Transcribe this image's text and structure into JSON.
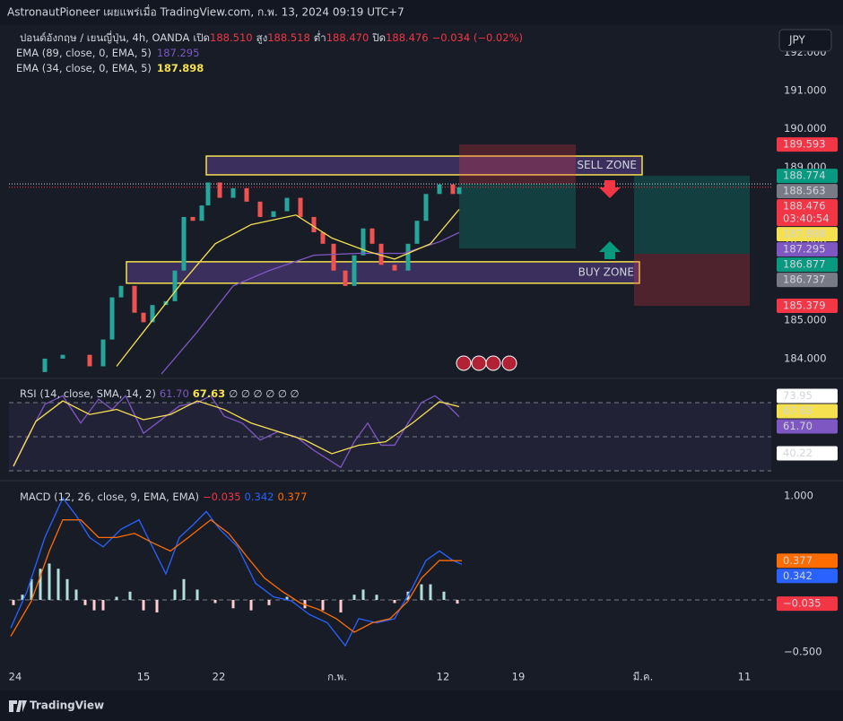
{
  "header": {
    "text": "AstronautPioneer เผยแพร่เมื่อ TradingView.com, ก.พ. 13, 2024 09:19 UTC+7"
  },
  "currency_button": "JPY",
  "footer": {
    "logo_text": "TradingView"
  },
  "chart_data": [
    {
      "type": "candlestick",
      "title": "ปอนด์อังกฤษ / เยนญี่ปุ่น, 4h, OANDA",
      "ohlc": [
        {
          "label": "เปิด",
          "value": "188.510"
        },
        {
          "label": "สูง",
          "value": "188.518"
        },
        {
          "label": "ต่ำ",
          "value": "188.470"
        },
        {
          "label": "ปิด",
          "value": "188.476"
        }
      ],
      "change": "−0.034 (−0.02%)",
      "up_color": "#26a69a",
      "down_color": "#ef5350",
      "x": [
        20,
        50,
        70,
        100,
        115,
        125,
        135,
        150,
        160,
        170,
        185,
        195,
        205,
        215,
        225,
        232,
        245,
        260,
        275,
        290,
        305,
        320,
        335,
        350,
        360,
        372,
        385,
        395,
        405,
        415,
        425,
        440,
        455,
        465,
        475,
        490,
        505,
        512
      ],
      "values": [
        183.65,
        184.0,
        184.1,
        183.8,
        184.5,
        185.6,
        185.9,
        185.2,
        184.95,
        185.4,
        185.5,
        186.3,
        187.7,
        187.6,
        188.0,
        188.6,
        188.2,
        188.45,
        188.1,
        187.7,
        187.85,
        188.2,
        187.7,
        187.3,
        187.0,
        186.3,
        185.9,
        186.7,
        187.4,
        187.0,
        186.45,
        186.3,
        187.0,
        187.6,
        188.3,
        188.55,
        188.3,
        188.476
      ],
      "indicators": [
        {
          "name": "EMA (89, close, 0, EMA, 5)",
          "value_label": "187.295",
          "color": "#7e57c2",
          "x": [
            180,
            220,
            260,
            300,
            350,
            400,
            450,
            490,
            512
          ],
          "values": [
            183.6,
            184.7,
            185.9,
            186.3,
            186.7,
            186.75,
            186.75,
            187.05,
            187.295
          ]
        },
        {
          "name": "EMA (34, close, 0, EMA, 5)",
          "value_label": "187.898",
          "color": "#f5e050",
          "x": [
            130,
            160,
            200,
            240,
            280,
            330,
            370,
            410,
            440,
            480,
            512
          ],
          "values": [
            183.8,
            184.7,
            185.9,
            187.0,
            187.5,
            187.75,
            187.15,
            186.8,
            186.6,
            187.0,
            187.898
          ]
        }
      ],
      "zones": [
        {
          "label": "SELL ZONE",
          "label_color": "#f23645",
          "top": 189.29,
          "bottom": 188.8,
          "x": [
            230,
            716
          ]
        },
        {
          "label": "BUY ZONE",
          "label_color": "#2aa6c8",
          "top": 186.53,
          "bottom": 185.97,
          "x": [
            141,
            713
          ]
        }
      ],
      "zone_stroke": "#f5e050",
      "zone_fill": "rgba(126,87,194,0.35)",
      "positions": [
        {
          "x": [
            512,
            642
          ],
          "entry": 188.563,
          "target": 186.877,
          "stop": 189.593
        },
        {
          "x": [
            707,
            836
          ],
          "entry": 186.737,
          "target": 188.774,
          "stop": 185.379
        }
      ],
      "profit_color": "rgba(8,153,129,0.28)",
      "loss_color": "rgba(242,54,69,0.25)",
      "ylim": [
        183.53,
        192.71
      ],
      "yticks": [
        {
          "value": 184,
          "label": "184.000"
        },
        {
          "value": 185,
          "label": "185.000"
        },
        {
          "value": 186,
          "label": "186.000"
        },
        {
          "value": 187,
          "label": "187.000"
        },
        {
          "value": 188,
          "label": "188.000"
        },
        {
          "value": 189,
          "label": "189.000"
        },
        {
          "value": 190,
          "label": "190.000"
        },
        {
          "value": 191,
          "label": "191.000"
        },
        {
          "value": 192,
          "label": "192.000"
        }
      ],
      "grid": false,
      "price_labels": [
        {
          "value": 189.593,
          "color": "#f23645",
          "text_color": "#ffffff"
        },
        {
          "value": 188.774,
          "color": "#089981",
          "text_color": "#ffffff"
        },
        {
          "value": 188.563,
          "color": "#787b86",
          "text_color": "#ffffff",
          "line": true
        },
        {
          "value": 188.476,
          "color": "#f23645",
          "text_color": "#ffffff",
          "line": true,
          "countdown": "03:40:54"
        },
        {
          "value": 187.898,
          "color": "#f5e050",
          "text_color": "#131722"
        },
        {
          "value": 187.295,
          "color": "#7e57c2",
          "text_color": "#ffffff"
        },
        {
          "value": 186.877,
          "color": "#089981",
          "text_color": "#ffffff"
        },
        {
          "value": 186.737,
          "color": "#787b86",
          "text_color": "#ffffff"
        },
        {
          "value": 185.379,
          "color": "#f23645",
          "text_color": "#ffffff"
        }
      ]
    },
    {
      "type": "line",
      "title": "RSI (14, close, SMA, 14, 2)",
      "legend_values": [
        {
          "label": "61.70",
          "color": "#7e57c2"
        },
        {
          "label": "67.63",
          "color": "#f5e050"
        }
      ],
      "legend_extra": "∅ ∅ ∅ ∅ ∅ ∅",
      "series": [
        {
          "color": "#7e57c2",
          "x": [
            15,
            30,
            50,
            70,
            90,
            110,
            125,
            140,
            160,
            180,
            200,
            220,
            235,
            250,
            270,
            290,
            310,
            330,
            350,
            365,
            380,
            395,
            410,
            425,
            440,
            455,
            470,
            485,
            500,
            512
          ],
          "values": [
            33,
            49,
            69,
            74,
            58,
            72,
            66,
            74,
            52,
            60,
            68,
            70,
            74,
            62,
            58,
            48,
            53,
            50,
            42,
            37,
            32,
            47,
            58,
            45,
            45,
            58,
            70,
            74,
            68,
            61.7
          ]
        },
        {
          "color": "#f5e050",
          "x": [
            15,
            40,
            70,
            100,
            130,
            160,
            190,
            220,
            250,
            280,
            310,
            340,
            370,
            400,
            430,
            460,
            490,
            512
          ],
          "values": [
            32.6,
            59,
            71,
            63,
            66,
            60,
            63,
            71,
            66,
            58,
            53,
            48,
            40,
            45,
            47,
            58,
            70.5,
            67.63
          ]
        }
      ],
      "bands": [
        70,
        50,
        30
      ],
      "band_fill": "rgba(126,87,194,0.1)",
      "ylim": [
        26.3,
        82.6
      ],
      "price_labels": [
        {
          "value": 73.95,
          "color": "#ffffff",
          "text_color": "#131722"
        },
        {
          "value": 67.63,
          "color": "#f5e050",
          "text_color": "#131722"
        },
        {
          "value": {
            "value": 61.7,
            "label": "61.70"
          },
          "color": "#7e57c2",
          "text_color": "#ffffff"
        },
        {
          "value": 40.22,
          "color": "#ffffff",
          "text_color": "#131722"
        }
      ]
    },
    {
      "type": "line",
      "title": "MACD (12, 26, close, 9, EMA, EMA)",
      "legend_values": [
        {
          "label": "−0.035",
          "color": "#f23645"
        },
        {
          "label": "0.342",
          "color": "#2962ff"
        },
        {
          "label": "0.377",
          "color": "#ff6d00"
        }
      ],
      "series": [
        {
          "type": "bar",
          "color_up": "#b2dfdb",
          "color_down": "#ffcdd2",
          "x": [
            15,
            25,
            35,
            45,
            55,
            65,
            75,
            85,
            95,
            105,
            115,
            130,
            145,
            160,
            175,
            195,
            205,
            220,
            240,
            260,
            280,
            300,
            320,
            340,
            360,
            380,
            395,
            405,
            420,
            440,
            455,
            470,
            480,
            495,
            510
          ],
          "values": [
            -0.05,
            0.05,
            0.2,
            0.3,
            0.35,
            0.3,
            0.2,
            0.1,
            -0.05,
            -0.1,
            -0.1,
            0.03,
            0.08,
            -0.1,
            -0.12,
            0.1,
            0.2,
            0.1,
            -0.03,
            -0.08,
            -0.1,
            -0.05,
            0.03,
            -0.08,
            -0.1,
            -0.12,
            0.05,
            0.1,
            0.05,
            -0.03,
            0.08,
            0.15,
            0.15,
            0.08,
            -0.035
          ]
        },
        {
          "color": "#2962ff",
          "x": [
            12,
            30,
            50,
            70,
            85,
            100,
            115,
            135,
            155,
            170,
            185,
            200,
            215,
            230,
            245,
            265,
            285,
            305,
            325,
            345,
            365,
            385,
            400,
            420,
            440,
            460,
            475,
            490,
            505,
            515
          ],
          "values": [
            -0.27,
            0.08,
            0.6,
            0.98,
            0.81,
            0.6,
            0.51,
            0.68,
            0.77,
            0.51,
            0.25,
            0.6,
            0.72,
            0.85,
            0.68,
            0.51,
            0.16,
            0.03,
            -0.01,
            -0.14,
            -0.22,
            -0.44,
            -0.18,
            -0.22,
            -0.18,
            0.12,
            0.38,
            0.47,
            0.38,
            0.342
          ]
        },
        {
          "color": "#ff6d00",
          "x": [
            12,
            35,
            55,
            70,
            90,
            110,
            130,
            150,
            170,
            190,
            210,
            235,
            255,
            275,
            295,
            315,
            335,
            355,
            375,
            395,
            415,
            435,
            455,
            470,
            490,
            515
          ],
          "values": [
            -0.35,
            -0.01,
            0.47,
            0.77,
            0.77,
            0.6,
            0.6,
            0.64,
            0.55,
            0.47,
            0.6,
            0.77,
            0.64,
            0.42,
            0.21,
            0.08,
            -0.03,
            -0.09,
            -0.18,
            -0.31,
            -0.22,
            -0.18,
            -0.01,
            0.21,
            0.38,
            0.377
          ]
        }
      ],
      "hlines": [
        0
      ],
      "ylim": [
        -0.612,
        1.112
      ],
      "yticks": [
        {
          "value": 1,
          "label": "1.000"
        },
        {
          "value": -0.5,
          "label": "−0.500"
        }
      ],
      "price_labels": [
        {
          "value": 0.377,
          "color": "#ff6d00",
          "text_color": "#ffffff"
        },
        {
          "value": 0.342,
          "color": "#2962ff",
          "text_color": "#ffffff"
        },
        {
          "value": {
            "value": -0.035,
            "label": "−0.035"
          },
          "color": "#f23645",
          "text_color": "#ffffff"
        }
      ],
      "xlim": [
        10,
        860
      ],
      "xticks": [
        {
          "value": 17,
          "label": "24"
        },
        {
          "value": 160,
          "label": "15"
        },
        {
          "value": 244,
          "label": "22"
        },
        {
          "value": 376,
          "label": "ก.พ."
        },
        {
          "value": 494,
          "label": "12"
        },
        {
          "value": 578,
          "label": "19"
        },
        {
          "value": 717,
          "label": "มี.ค."
        },
        {
          "value": 830,
          "label": "11"
        }
      ]
    }
  ]
}
